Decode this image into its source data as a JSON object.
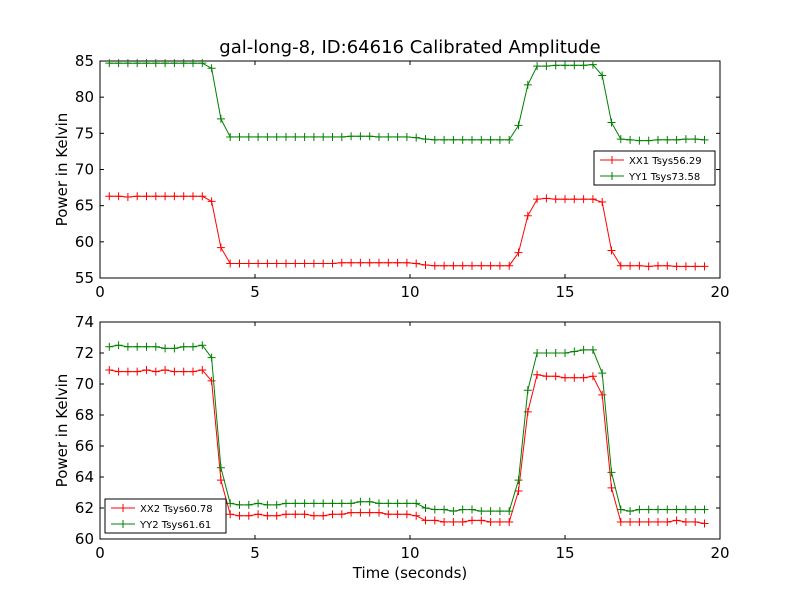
{
  "chart_data": [
    {
      "type": "line",
      "title": "gal-long-8, ID:64616 Calibrated Amplitude",
      "xlabel": "",
      "ylabel": "Power in Kelvin",
      "xlim": [
        0,
        20
      ],
      "ylim": [
        55,
        85
      ],
      "xticks": [
        "0",
        "5",
        "10",
        "15",
        "20"
      ],
      "yticks": [
        "55",
        "60",
        "65",
        "70",
        "75",
        "80",
        "85"
      ],
      "legend_position": "center-right",
      "x": [
        0.3,
        0.6,
        0.9,
        1.2,
        1.5,
        1.8,
        2.1,
        2.4,
        2.7,
        3.0,
        3.3,
        3.6,
        3.9,
        4.2,
        4.5,
        4.8,
        5.1,
        5.4,
        5.7,
        6.0,
        6.3,
        6.6,
        6.9,
        7.2,
        7.5,
        7.8,
        8.1,
        8.4,
        8.7,
        9.0,
        9.3,
        9.6,
        9.9,
        10.2,
        10.5,
        10.8,
        11.1,
        11.4,
        11.7,
        12.0,
        12.3,
        12.6,
        12.9,
        13.2,
        13.5,
        13.8,
        14.1,
        14.4,
        14.7,
        15.0,
        15.3,
        15.6,
        15.9,
        16.2,
        16.5,
        16.8,
        17.1,
        17.4,
        17.7,
        18.0,
        18.3,
        18.6,
        18.9,
        19.2,
        19.5
      ],
      "series": [
        {
          "name": "XX1 Tsys56.29",
          "color": "#ff0000",
          "values": [
            66.3,
            66.3,
            66.2,
            66.3,
            66.3,
            66.3,
            66.3,
            66.3,
            66.3,
            66.3,
            66.3,
            65.6,
            59.2,
            57.0,
            57.0,
            57.0,
            57.0,
            57.0,
            57.0,
            57.0,
            57.0,
            57.0,
            57.0,
            57.0,
            57.0,
            57.1,
            57.1,
            57.1,
            57.1,
            57.1,
            57.1,
            57.1,
            57.1,
            57.0,
            56.8,
            56.7,
            56.7,
            56.7,
            56.7,
            56.7,
            56.7,
            56.7,
            56.7,
            56.7,
            58.5,
            63.6,
            65.9,
            66.0,
            65.9,
            65.9,
            65.9,
            65.9,
            65.9,
            65.5,
            58.8,
            56.7,
            56.7,
            56.7,
            56.6,
            56.7,
            56.7,
            56.6,
            56.6,
            56.6,
            56.6
          ]
        },
        {
          "name": "YY1 Tsys73.58",
          "color": "#008000",
          "values": [
            84.7,
            84.7,
            84.7,
            84.7,
            84.7,
            84.7,
            84.7,
            84.7,
            84.7,
            84.7,
            84.7,
            84.0,
            77.0,
            74.5,
            74.5,
            74.5,
            74.5,
            74.5,
            74.5,
            74.5,
            74.5,
            74.5,
            74.5,
            74.5,
            74.5,
            74.5,
            74.6,
            74.6,
            74.6,
            74.5,
            74.5,
            74.5,
            74.5,
            74.4,
            74.2,
            74.1,
            74.1,
            74.1,
            74.1,
            74.1,
            74.1,
            74.1,
            74.1,
            74.1,
            76.1,
            81.7,
            84.3,
            84.3,
            84.4,
            84.4,
            84.4,
            84.4,
            84.5,
            83.0,
            76.5,
            74.2,
            74.1,
            74.0,
            74.0,
            74.1,
            74.1,
            74.1,
            74.2,
            74.2,
            74.1
          ]
        }
      ]
    },
    {
      "type": "line",
      "title": "",
      "xlabel": "Time (seconds)",
      "ylabel": "Power in Kelvin",
      "xlim": [
        0,
        20
      ],
      "ylim": [
        60,
        74
      ],
      "xticks": [
        "0",
        "5",
        "10",
        "15",
        "20"
      ],
      "yticks": [
        "60",
        "62",
        "64",
        "66",
        "68",
        "70",
        "72",
        "74"
      ],
      "legend_position": "lower-left",
      "x": [
        0.3,
        0.6,
        0.9,
        1.2,
        1.5,
        1.8,
        2.1,
        2.4,
        2.7,
        3.0,
        3.3,
        3.6,
        3.9,
        4.2,
        4.5,
        4.8,
        5.1,
        5.4,
        5.7,
        6.0,
        6.3,
        6.6,
        6.9,
        7.2,
        7.5,
        7.8,
        8.1,
        8.4,
        8.7,
        9.0,
        9.3,
        9.6,
        9.9,
        10.2,
        10.5,
        10.8,
        11.1,
        11.4,
        11.7,
        12.0,
        12.3,
        12.6,
        12.9,
        13.2,
        13.5,
        13.8,
        14.1,
        14.4,
        14.7,
        15.0,
        15.3,
        15.6,
        15.9,
        16.2,
        16.5,
        16.8,
        17.1,
        17.4,
        17.7,
        18.0,
        18.3,
        18.6,
        18.9,
        19.2,
        19.5
      ],
      "series": [
        {
          "name": "XX2 Tsys60.78",
          "color": "#ff0000",
          "values": [
            70.9,
            70.8,
            70.8,
            70.8,
            70.9,
            70.8,
            70.9,
            70.8,
            70.8,
            70.8,
            70.9,
            70.2,
            63.8,
            61.6,
            61.5,
            61.5,
            61.6,
            61.5,
            61.5,
            61.6,
            61.6,
            61.6,
            61.5,
            61.5,
            61.6,
            61.6,
            61.7,
            61.7,
            61.7,
            61.7,
            61.6,
            61.6,
            61.6,
            61.5,
            61.2,
            61.2,
            61.1,
            61.1,
            61.1,
            61.2,
            61.2,
            61.1,
            61.1,
            61.1,
            63.1,
            68.2,
            70.6,
            70.5,
            70.5,
            70.4,
            70.4,
            70.4,
            70.5,
            69.3,
            63.3,
            61.1,
            61.1,
            61.1,
            61.1,
            61.1,
            61.1,
            61.2,
            61.1,
            61.1,
            61.0
          ]
        },
        {
          "name": "YY2 Tsys61.61",
          "color": "#008000",
          "values": [
            72.4,
            72.5,
            72.4,
            72.4,
            72.4,
            72.4,
            72.3,
            72.3,
            72.4,
            72.4,
            72.5,
            71.7,
            64.6,
            62.3,
            62.2,
            62.2,
            62.3,
            62.2,
            62.2,
            62.3,
            62.3,
            62.3,
            62.3,
            62.3,
            62.3,
            62.3,
            62.3,
            62.4,
            62.4,
            62.3,
            62.3,
            62.3,
            62.3,
            62.3,
            62.0,
            61.9,
            61.9,
            61.8,
            61.9,
            61.9,
            61.8,
            61.8,
            61.8,
            61.8,
            63.8,
            69.6,
            72.0,
            72.0,
            72.0,
            72.0,
            72.1,
            72.2,
            72.2,
            70.7,
            64.3,
            61.9,
            61.8,
            61.9,
            61.9,
            61.9,
            61.9,
            61.9,
            61.9,
            61.9,
            61.9
          ]
        }
      ]
    }
  ]
}
